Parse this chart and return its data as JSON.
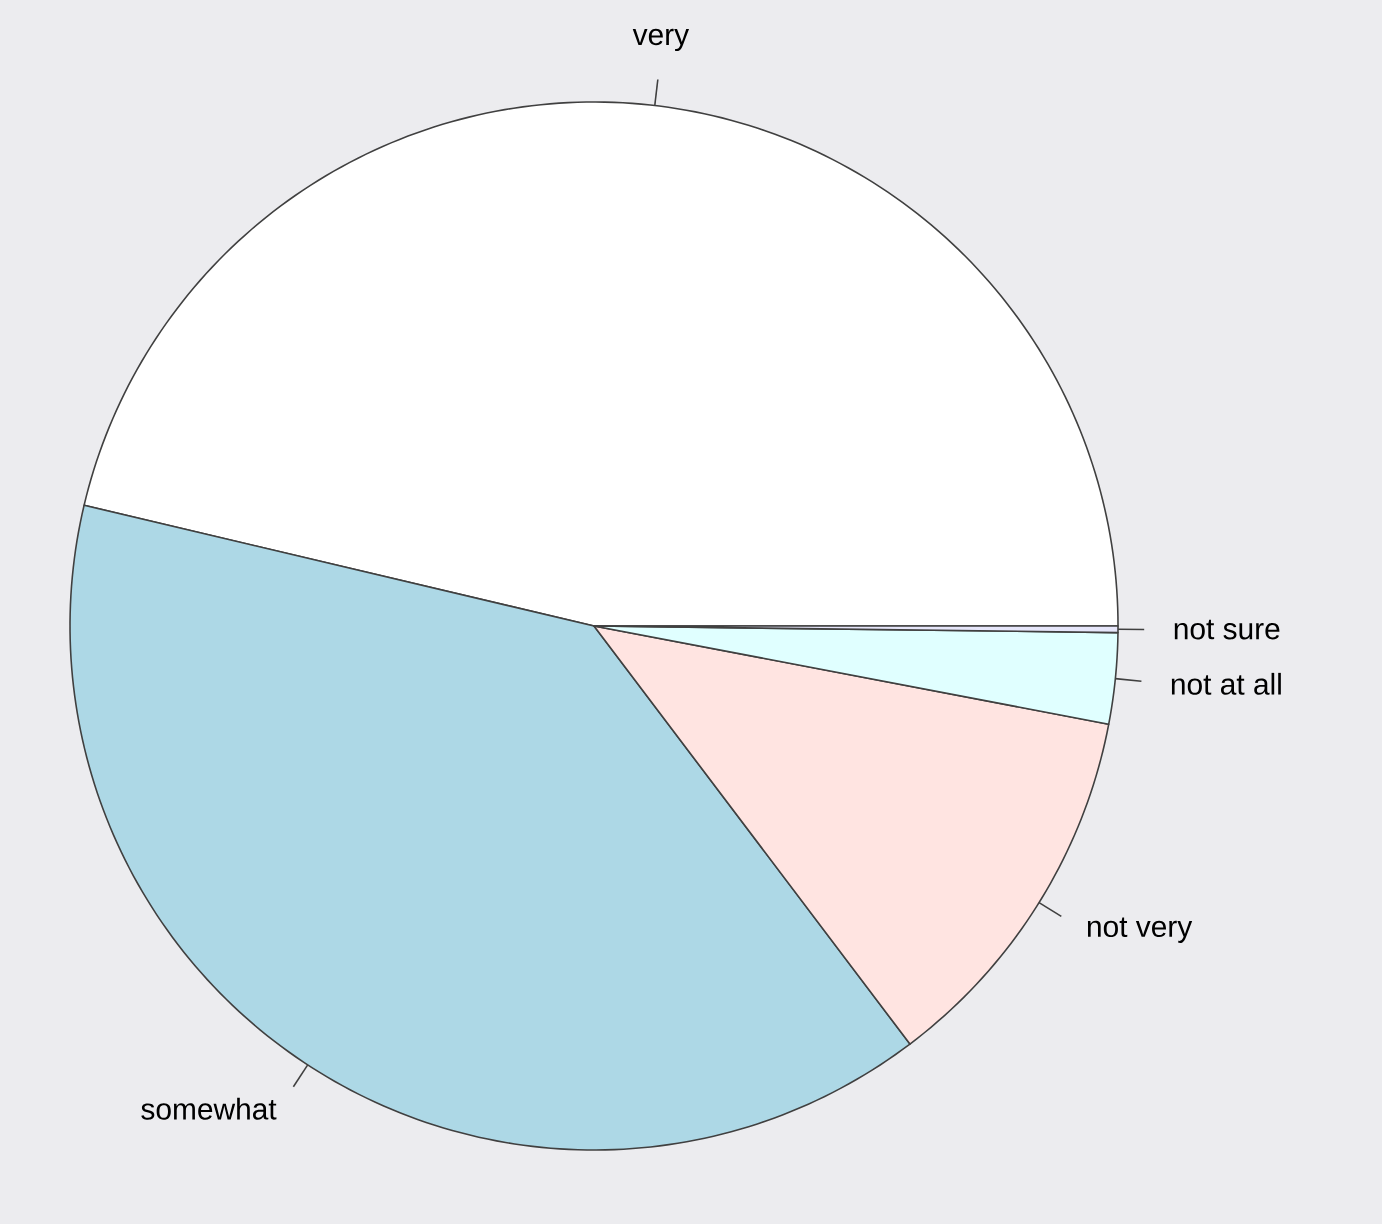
{
  "chart_data": {
    "type": "pie",
    "categories": [
      "very",
      "somewhat",
      "not very",
      "not at all",
      "not sure"
    ],
    "values": [
      46.3,
      39.0,
      11.7,
      2.8,
      0.2
    ],
    "colors": [
      "#ffffff",
      "#add8e6",
      "#ffe4e1",
      "#e0ffff",
      "#e6e6fa"
    ]
  }
}
